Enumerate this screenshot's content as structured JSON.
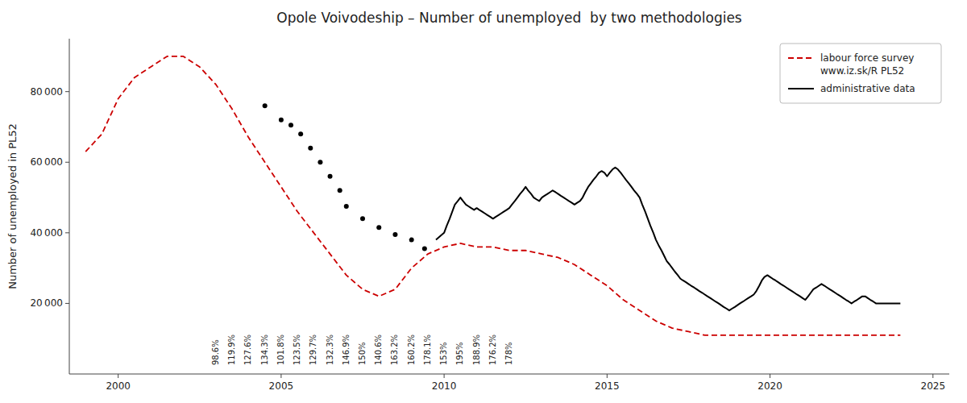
{
  "chart_data": {
    "type": "line",
    "title": "Opole Voivodeship – Number of unemployed  by two methodologies",
    "y_label": "Number of unemployed in PL52",
    "xlim": [
      1998.5,
      2025.5
    ],
    "ylim": [
      0,
      95000
    ],
    "xticks": [
      2000,
      2005,
      2010,
      2015,
      2020,
      2025
    ],
    "yticks": [
      {
        "value": 20000,
        "label": "20 000"
      },
      {
        "value": 40000,
        "label": "40 000"
      },
      {
        "value": 60000,
        "label": "60 000"
      },
      {
        "value": 80000,
        "label": "80 000"
      }
    ],
    "grid": false,
    "legend": "upper right",
    "series": [
      {
        "name": "labour force survey\nwww.iz.sk/R PL52",
        "color": "#cc0000",
        "line_style": "dashed",
        "x": [
          1999.0,
          1999.5,
          2000.0,
          2000.5,
          2001.0,
          2001.5,
          2002.0,
          2002.5,
          2003.0,
          2003.5,
          2004.0,
          2004.5,
          2005.0,
          2005.5,
          2006.0,
          2006.5,
          2007.0,
          2007.5,
          2008.0,
          2008.5,
          2009.0,
          2009.5,
          2010.0,
          2010.5,
          2011.0,
          2011.5,
          2012.0,
          2012.5,
          2013.0,
          2013.5,
          2014.0,
          2014.5,
          2015.0,
          2015.5,
          2016.0,
          2016.5,
          2017.0,
          2017.5,
          2018.0,
          2018.5,
          2019.0,
          2019.5,
          2020.0,
          2020.5,
          2021.0,
          2021.5,
          2022.0,
          2022.5,
          2023.0,
          2023.5,
          2024.0
        ],
        "values": [
          63000,
          68000,
          78000,
          84000,
          87000,
          90000,
          90000,
          87000,
          82000,
          75000,
          67000,
          60000,
          53000,
          46000,
          40000,
          34000,
          28000,
          24000,
          22000,
          24000,
          30000,
          34000,
          36000,
          37000,
          36000,
          36000,
          35000,
          35000,
          34000,
          33000,
          31000,
          28000,
          25000,
          21000,
          18000,
          15000,
          13000,
          12000,
          11000,
          11000,
          11000,
          11000,
          11000,
          11000,
          11000,
          11000,
          11000,
          11000,
          11000,
          11000,
          11000
        ]
      },
      {
        "color": "#000000",
        "marker": "circle",
        "line_style": "none",
        "x": [
          2004.5,
          2005.0,
          2005.3,
          2005.6,
          2005.9,
          2006.2,
          2006.5,
          2006.8,
          2007.0,
          2007.5,
          2008.0,
          2008.5,
          2009.0,
          2009.4
        ],
        "values": [
          76000,
          72000,
          70500,
          68000,
          64000,
          60000,
          56000,
          52000,
          47500,
          44000,
          41500,
          39500,
          38000,
          35500
        ]
      },
      {
        "name": "administrative data",
        "color": "#000000",
        "line_style": "solid",
        "x": [
          2009.75,
          2010.0,
          2010.08,
          2010.17,
          2010.25,
          2010.33,
          2010.42,
          2010.5,
          2010.58,
          2010.67,
          2010.75,
          2010.83,
          2010.92,
          2011.0,
          2011.08,
          2011.17,
          2011.25,
          2011.33,
          2011.42,
          2011.5,
          2011.58,
          2011.67,
          2011.75,
          2011.83,
          2011.92,
          2012.0,
          2012.08,
          2012.17,
          2012.25,
          2012.33,
          2012.42,
          2012.5,
          2012.58,
          2012.67,
          2012.75,
          2012.83,
          2012.92,
          2013.0,
          2013.08,
          2013.17,
          2013.25,
          2013.33,
          2013.42,
          2013.5,
          2013.58,
          2013.67,
          2013.75,
          2013.83,
          2013.92,
          2014.0,
          2014.08,
          2014.17,
          2014.25,
          2014.33,
          2014.42,
          2014.5,
          2014.58,
          2014.67,
          2014.75,
          2014.83,
          2014.92,
          2015.0,
          2015.08,
          2015.17,
          2015.25,
          2015.33,
          2015.42,
          2015.5,
          2015.58,
          2015.67,
          2015.75,
          2015.83,
          2015.92,
          2016.0,
          2016.08,
          2016.17,
          2016.25,
          2016.33,
          2016.42,
          2016.5,
          2016.58,
          2016.67,
          2016.75,
          2016.83,
          2016.92,
          2017.0,
          2017.08,
          2017.17,
          2017.25,
          2017.33,
          2017.42,
          2017.5,
          2017.58,
          2017.67,
          2017.75,
          2017.83,
          2017.92,
          2018.0,
          2018.08,
          2018.17,
          2018.25,
          2018.33,
          2018.42,
          2018.5,
          2018.58,
          2018.67,
          2018.75,
          2018.83,
          2018.92,
          2019.0,
          2019.08,
          2019.17,
          2019.25,
          2019.33,
          2019.42,
          2019.5,
          2019.58,
          2019.67,
          2019.75,
          2019.83,
          2019.92,
          2020.0,
          2020.08,
          2020.17,
          2020.25,
          2020.33,
          2020.42,
          2020.5,
          2020.58,
          2020.67,
          2020.75,
          2020.83,
          2020.92,
          2021.0,
          2021.08,
          2021.17,
          2021.25,
          2021.33,
          2021.42,
          2021.5,
          2021.58,
          2021.67,
          2021.75,
          2021.83,
          2021.92,
          2022.0,
          2022.08,
          2022.17,
          2022.25,
          2022.33,
          2022.42,
          2022.5,
          2022.58,
          2022.67,
          2022.75,
          2022.83,
          2022.92,
          2023.0,
          2023.08,
          2023.17,
          2023.25,
          2023.33,
          2023.42,
          2023.5,
          2023.58,
          2023.67,
          2023.75,
          2023.83,
          2023.92,
          2024.0
        ],
        "values": [
          38000,
          40000,
          42000,
          44000,
          46000,
          48000,
          49000,
          50000,
          49000,
          48000,
          47500,
          47000,
          46500,
          47000,
          46500,
          46000,
          45500,
          45000,
          44500,
          44000,
          44500,
          45000,
          45500,
          46000,
          46500,
          47000,
          48000,
          49000,
          50000,
          51000,
          52000,
          53000,
          52000,
          51000,
          50000,
          49500,
          49000,
          50000,
          50500,
          51000,
          51500,
          52000,
          51500,
          51000,
          50500,
          50000,
          49500,
          49000,
          48500,
          48000,
          48500,
          49000,
          50000,
          51500,
          53000,
          54000,
          55000,
          56000,
          57000,
          57500,
          57000,
          56000,
          57000,
          58000,
          58500,
          58000,
          57000,
          56000,
          55000,
          54000,
          53000,
          52000,
          51000,
          50000,
          48000,
          46000,
          44000,
          42000,
          40000,
          38000,
          36500,
          35000,
          33500,
          32000,
          31000,
          30000,
          29000,
          28000,
          27000,
          26500,
          26000,
          25500,
          25000,
          24500,
          24000,
          23500,
          23000,
          22500,
          22000,
          21500,
          21000,
          20500,
          20000,
          19500,
          19000,
          18500,
          18000,
          18500,
          19000,
          19500,
          20000,
          20500,
          21000,
          21500,
          22000,
          22500,
          23500,
          25000,
          26500,
          27500,
          28000,
          27500,
          27000,
          26500,
          26000,
          25500,
          25000,
          24500,
          24000,
          23500,
          23000,
          22500,
          22000,
          21500,
          21000,
          22000,
          23000,
          24000,
          24500,
          25000,
          25500,
          25000,
          24500,
          24000,
          23500,
          23000,
          22500,
          22000,
          21500,
          21000,
          20500,
          20000,
          20500,
          21000,
          21500,
          22000,
          22000,
          21500,
          21000,
          20500,
          20000,
          20000,
          20000,
          20000,
          20000,
          20000,
          20000,
          20000,
          20000,
          20000
        ]
      }
    ],
    "annotations": [
      {
        "x": 2003.0,
        "y": 2500,
        "text": "98.6%"
      },
      {
        "x": 2003.5,
        "y": 2500,
        "text": "119.9%"
      },
      {
        "x": 2004.0,
        "y": 2500,
        "text": "127.6%"
      },
      {
        "x": 2004.5,
        "y": 2500,
        "text": "134.3%"
      },
      {
        "x": 2005.0,
        "y": 2500,
        "text": "101.8%"
      },
      {
        "x": 2005.5,
        "y": 2500,
        "text": "123.5%"
      },
      {
        "x": 2006.0,
        "y": 2500,
        "text": "129.7%"
      },
      {
        "x": 2006.5,
        "y": 2500,
        "text": "132.3%"
      },
      {
        "x": 2007.0,
        "y": 2500,
        "text": "146.9%"
      },
      {
        "x": 2007.5,
        "y": 2500,
        "text": "150%"
      },
      {
        "x": 2008.0,
        "y": 2500,
        "text": "140.6%"
      },
      {
        "x": 2008.5,
        "y": 2500,
        "text": "163.2%"
      },
      {
        "x": 2009.0,
        "y": 2500,
        "text": "160.2%"
      },
      {
        "x": 2009.5,
        "y": 2500,
        "text": "178.1%"
      },
      {
        "x": 2010.0,
        "y": 2500,
        "text": "153%"
      },
      {
        "x": 2010.5,
        "y": 2500,
        "text": "195%"
      },
      {
        "x": 2011.0,
        "y": 2500,
        "text": "188.9%"
      },
      {
        "x": 2011.5,
        "y": 2500,
        "text": "176.2%"
      },
      {
        "x": 2012.0,
        "y": 2500,
        "text": "178%"
      }
    ]
  }
}
